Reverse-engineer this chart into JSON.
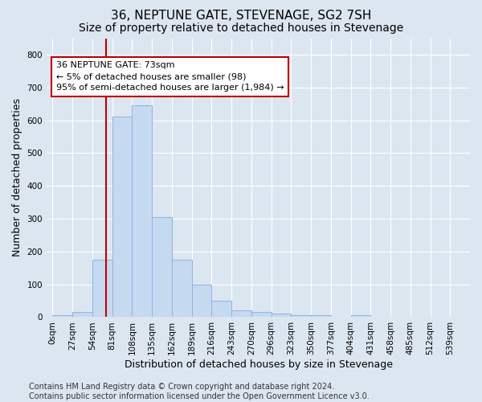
{
  "title": "36, NEPTUNE GATE, STEVENAGE, SG2 7SH",
  "subtitle": "Size of property relative to detached houses in Stevenage",
  "xlabel": "Distribution of detached houses by size in Stevenage",
  "ylabel": "Number of detached properties",
  "bin_labels": [
    "0sqm",
    "27sqm",
    "54sqm",
    "81sqm",
    "108sqm",
    "135sqm",
    "162sqm",
    "189sqm",
    "216sqm",
    "243sqm",
    "270sqm",
    "296sqm",
    "323sqm",
    "350sqm",
    "377sqm",
    "404sqm",
    "431sqm",
    "458sqm",
    "485sqm",
    "512sqm",
    "539sqm"
  ],
  "bar_heights": [
    5,
    15,
    175,
    610,
    645,
    305,
    175,
    100,
    50,
    20,
    15,
    10,
    5,
    5,
    0,
    5,
    0,
    0,
    0,
    0,
    0
  ],
  "bar_color": "#c5d9f1",
  "bar_edge_color": "#8db4e2",
  "vline_x": 2.7,
  "vline_color": "#c00000",
  "annotation_line1": "36 NEPTUNE GATE: 73sqm",
  "annotation_line2": "← 5% of detached houses are smaller (98)",
  "annotation_line3": "95% of semi-detached houses are larger (1,984) →",
  "annotation_box_color": "#ffffff",
  "annotation_box_edge": "#c00000",
  "ylim": [
    0,
    850
  ],
  "yticks": [
    0,
    100,
    200,
    300,
    400,
    500,
    600,
    700,
    800
  ],
  "footer": "Contains HM Land Registry data © Crown copyright and database right 2024.\nContains public sector information licensed under the Open Government Licence v3.0.",
  "bg_color": "#dce6f1",
  "plot_bg_color": "#dce6f1",
  "grid_color": "#ffffff",
  "title_fontsize": 11,
  "subtitle_fontsize": 10,
  "axis_label_fontsize": 9,
  "tick_fontsize": 7.5,
  "footer_fontsize": 7,
  "annot_fontsize": 8
}
